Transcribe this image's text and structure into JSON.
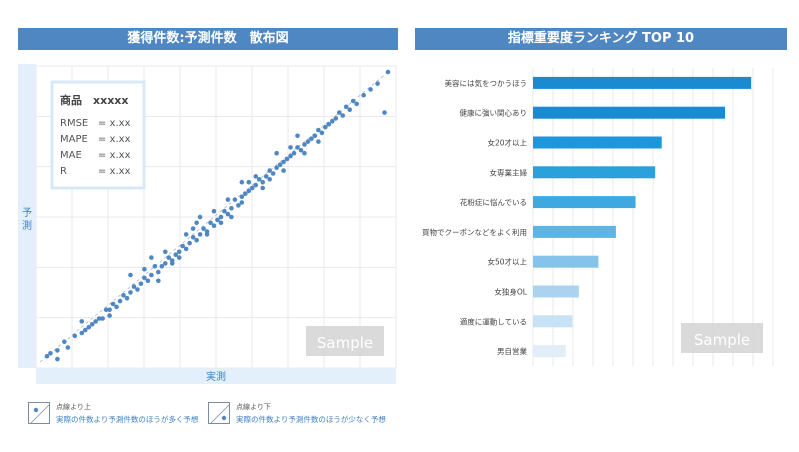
{
  "headers": {
    "scatter_title": "獲得件数:予測件数　散布図",
    "bar_title": "指標重要度ランキング TOP 10"
  },
  "colors": {
    "header_bg": "#4f87c3",
    "point": "#4f87c3",
    "axis_band": "#e3f0fb",
    "bar_dark": "#1a8ad2",
    "bar_light": "#e1eefa"
  },
  "chart_data": [
    {
      "type": "scatter",
      "title": "",
      "xlabel": "実測",
      "ylabel": "予測",
      "grid": true,
      "diagonal_reference": true,
      "xlim": [
        0,
        100
      ],
      "ylim": [
        0,
        100
      ],
      "stats_box": {
        "title": "商品　xxxxx",
        "rows": [
          {
            "label": "RMSE",
            "value": "= x.xx"
          },
          {
            "label": "MAPE",
            "value": "= x.xx"
          },
          {
            "label": "MAE",
            "value": "= x.xx"
          },
          {
            "label": "R",
            "value": "= x.xx"
          }
        ]
      },
      "watermark": "Sample",
      "points": [
        [
          2,
          2
        ],
        [
          3,
          3
        ],
        [
          5,
          4
        ],
        [
          5,
          1
        ],
        [
          7,
          7
        ],
        [
          8,
          5
        ],
        [
          10,
          9
        ],
        [
          12,
          10
        ],
        [
          13,
          11
        ],
        [
          14,
          12
        ],
        [
          15,
          13
        ],
        [
          16,
          14
        ],
        [
          17,
          15
        ],
        [
          18,
          15
        ],
        [
          19,
          18
        ],
        [
          20,
          18
        ],
        [
          21,
          20
        ],
        [
          22,
          19
        ],
        [
          23,
          21
        ],
        [
          24,
          23
        ],
        [
          25,
          22
        ],
        [
          26,
          24
        ],
        [
          27,
          26
        ],
        [
          28,
          25
        ],
        [
          29,
          27
        ],
        [
          30,
          29
        ],
        [
          31,
          28
        ],
        [
          32,
          30
        ],
        [
          33,
          33
        ],
        [
          34,
          31
        ],
        [
          35,
          33
        ],
        [
          36,
          34
        ],
        [
          37,
          36
        ],
        [
          38,
          35
        ],
        [
          39,
          37
        ],
        [
          40,
          38
        ],
        [
          41,
          40
        ],
        [
          42,
          39
        ],
        [
          43,
          41
        ],
        [
          44,
          43
        ],
        [
          45,
          42
        ],
        [
          46,
          44
        ],
        [
          47,
          46
        ],
        [
          48,
          45
        ],
        [
          49,
          48
        ],
        [
          50,
          47
        ],
        [
          51,
          49
        ],
        [
          52,
          50
        ],
        [
          53,
          52
        ],
        [
          54,
          51
        ],
        [
          55,
          53
        ],
        [
          56,
          56
        ],
        [
          57,
          54
        ],
        [
          58,
          57
        ],
        [
          59,
          58
        ],
        [
          60,
          59
        ],
        [
          61,
          60
        ],
        [
          62,
          61
        ],
        [
          63,
          63
        ],
        [
          64,
          62
        ],
        [
          65,
          64
        ],
        [
          66,
          66
        ],
        [
          67,
          65
        ],
        [
          68,
          67
        ],
        [
          69,
          68
        ],
        [
          70,
          69
        ],
        [
          71,
          70
        ],
        [
          72,
          71
        ],
        [
          73,
          72
        ],
        [
          74,
          74
        ],
        [
          75,
          73
        ],
        [
          76,
          75
        ],
        [
          77,
          76
        ],
        [
          78,
          77
        ],
        [
          79,
          78
        ],
        [
          80,
          80
        ],
        [
          81,
          79
        ],
        [
          82,
          81
        ],
        [
          83,
          82
        ],
        [
          84,
          83
        ],
        [
          85,
          84
        ],
        [
          86,
          86
        ],
        [
          87,
          85
        ],
        [
          88,
          88
        ],
        [
          89,
          87
        ],
        [
          90,
          90
        ],
        [
          91,
          89
        ],
        [
          93,
          92
        ],
        [
          95,
          94
        ],
        [
          97,
          96
        ],
        [
          99,
          86
        ],
        [
          100,
          100
        ],
        [
          30,
          32
        ],
        [
          36,
          38
        ],
        [
          44,
          46
        ],
        [
          50,
          52
        ],
        [
          58,
          55
        ],
        [
          62,
          64
        ],
        [
          48,
          44
        ],
        [
          40,
          36
        ],
        [
          54,
          56
        ],
        [
          60,
          62
        ],
        [
          68,
          72
        ],
        [
          72,
          74
        ],
        [
          55,
          50
        ],
        [
          66,
          63
        ],
        [
          45,
          48
        ],
        [
          38,
          34
        ],
        [
          26,
          30
        ],
        [
          34,
          28
        ],
        [
          20,
          16
        ],
        [
          12,
          14
        ],
        [
          58,
          62
        ],
        [
          64,
          60
        ],
        [
          52,
          48
        ],
        [
          42,
          44
        ],
        [
          70,
          66
        ],
        [
          74,
          78
        ],
        [
          76,
          72
        ],
        [
          80,
          76
        ],
        [
          46,
          50
        ],
        [
          32,
          36
        ]
      ]
    },
    {
      "type": "bar",
      "orientation": "horizontal",
      "title": "",
      "xlabel": "",
      "ylabel": "",
      "grid": true,
      "watermark": "Sample",
      "categories": [
        "美容には気をつかうほう",
        "健康に強い関心あり",
        "女20才以上",
        "女専業主婦",
        "花粉症に悩んでいる",
        "買物でクーポンなどをよく利用",
        "女50才以上",
        "女独身OL",
        "適度に運動している",
        "男自営業"
      ],
      "values": [
        100,
        88,
        59,
        56,
        47,
        38,
        30,
        21,
        18,
        15
      ],
      "xlim": [
        0,
        110
      ],
      "bar_colors": [
        "#1a8ad2",
        "#1a8ad2",
        "#1e96da",
        "#2aa0dd",
        "#3ea9e0",
        "#5db5e4",
        "#84c4ea",
        "#abd3f0",
        "#c8e2f5",
        "#e1eefa"
      ]
    }
  ],
  "legend": {
    "above": {
      "caption": "点線より上",
      "text": "実際の件数より予測件数のほうが多く予想"
    },
    "below": {
      "caption": "点線より下",
      "text": "実際の件数より予測件数のほうが少なく予想"
    }
  }
}
